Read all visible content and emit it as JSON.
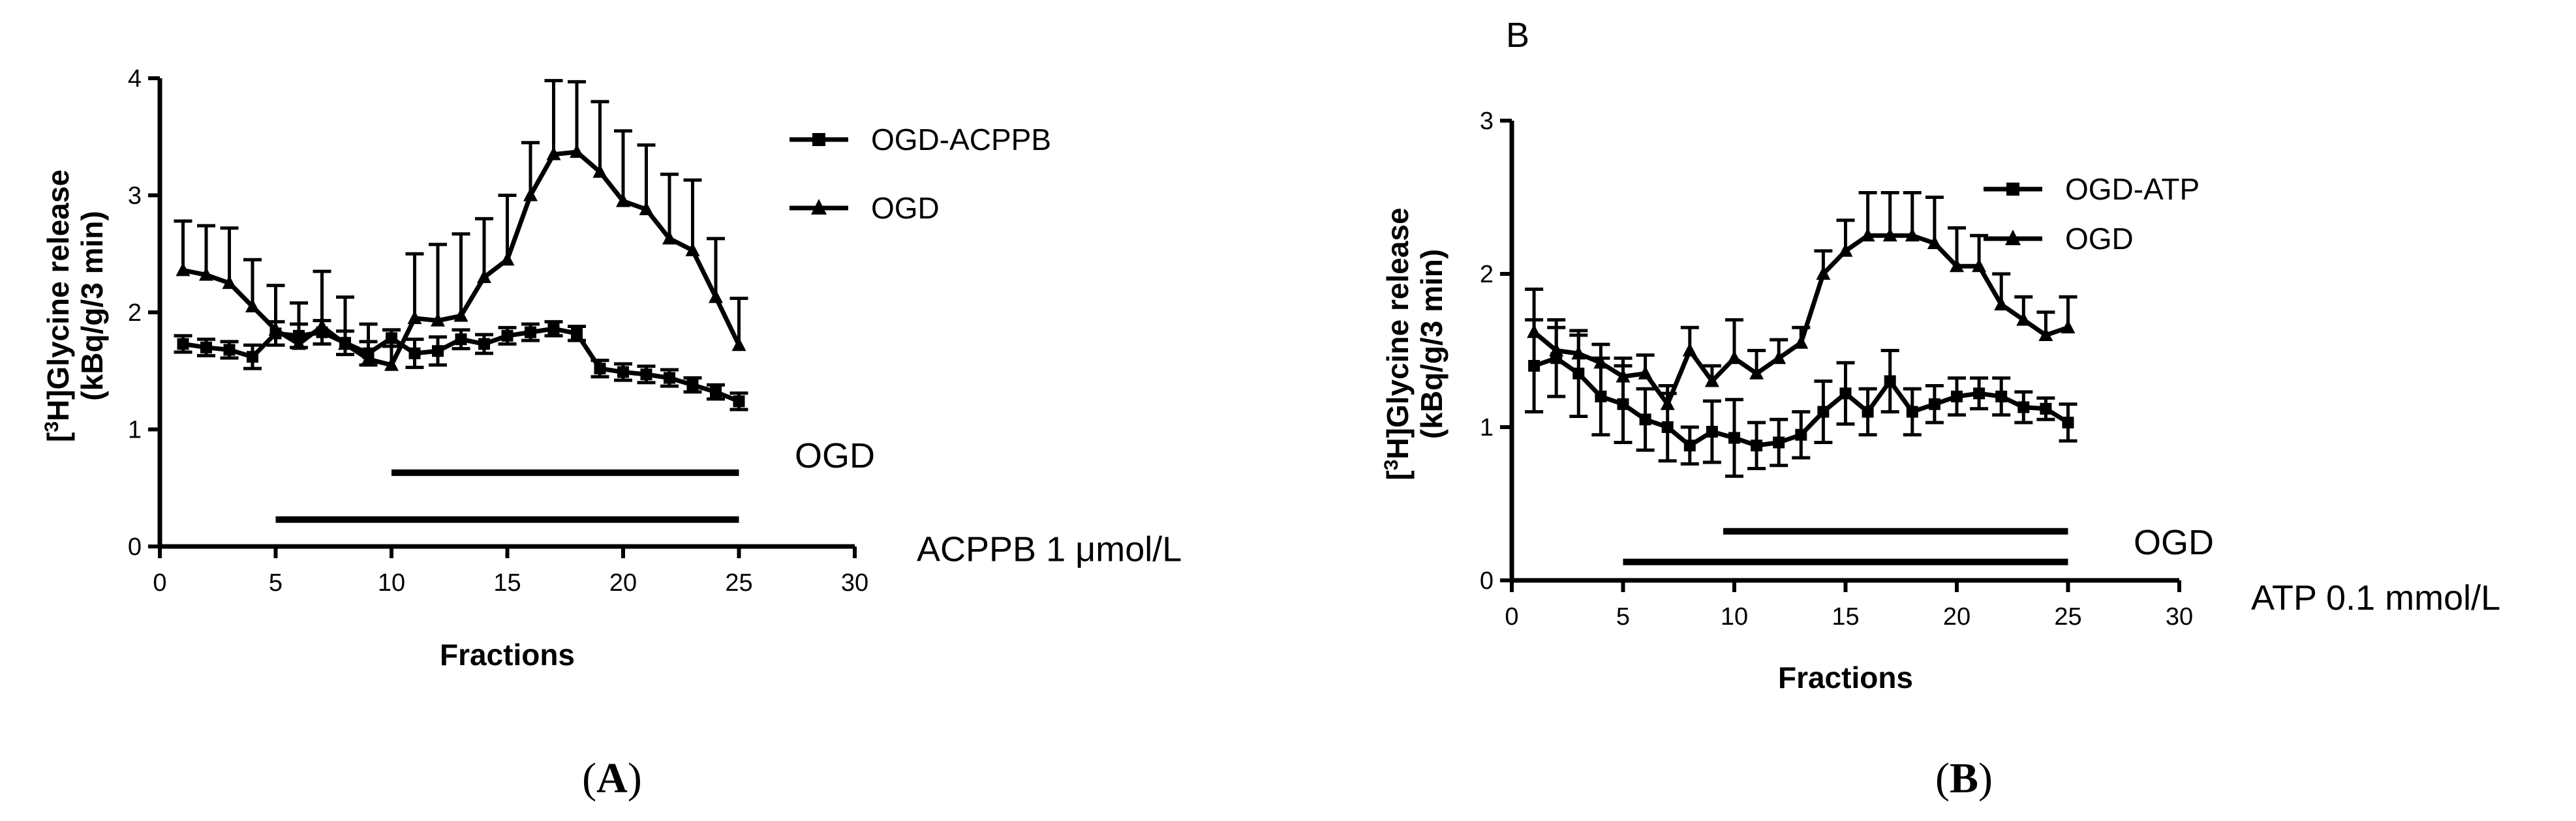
{
  "panels": {
    "A": {
      "caption": {
        "open": "(",
        "letter": "A",
        "close": ")"
      },
      "header": ""
    },
    "B": {
      "caption": {
        "open": "(",
        "letter": "B",
        "close": ")"
      },
      "header": "B"
    }
  },
  "chart_data": [
    {
      "type": "line",
      "panel": "A",
      "title": "",
      "xlabel": "Fractions",
      "ylabel_line1": "[3H]Glycine release",
      "ylabel_line2": "(kBq/g/3 min)",
      "xlim": [
        0,
        30
      ],
      "ylim": [
        0,
        4
      ],
      "xticks": [
        0,
        5,
        10,
        15,
        20,
        25,
        30
      ],
      "yticks": [
        0,
        1,
        2,
        3,
        4
      ],
      "x": [
        1,
        2,
        3,
        4,
        5,
        6,
        7,
        8,
        9,
        10,
        11,
        12,
        13,
        14,
        15,
        16,
        17,
        18,
        19,
        20,
        21,
        22,
        23,
        24,
        25
      ],
      "series": [
        {
          "name": "OGD-ACPPB",
          "marker": "square",
          "values": [
            1.73,
            1.7,
            1.68,
            1.62,
            1.82,
            1.8,
            1.83,
            1.74,
            1.65,
            1.78,
            1.65,
            1.67,
            1.77,
            1.73,
            1.8,
            1.83,
            1.86,
            1.82,
            1.52,
            1.49,
            1.47,
            1.44,
            1.38,
            1.32,
            1.24
          ],
          "errors": [
            0.07,
            0.07,
            0.07,
            0.1,
            0.1,
            0.1,
            0.1,
            0.1,
            0.1,
            0.07,
            0.12,
            0.12,
            0.08,
            0.08,
            0.07,
            0.07,
            0.06,
            0.06,
            0.07,
            0.07,
            0.07,
            0.07,
            0.06,
            0.06,
            0.07
          ]
        },
        {
          "name": "OGD",
          "marker": "triangle",
          "values": [
            2.36,
            2.32,
            2.25,
            2.05,
            1.85,
            1.73,
            1.88,
            1.73,
            1.6,
            1.55,
            1.95,
            1.93,
            1.97,
            2.3,
            2.45,
            3.0,
            3.35,
            3.37,
            3.2,
            2.95,
            2.88,
            2.63,
            2.53,
            2.13,
            1.72
          ],
          "errors": [
            0.42,
            0.42,
            0.47,
            0.4,
            0.38,
            0.35,
            0.47,
            0.4,
            0.3,
            0.3,
            0.55,
            0.65,
            0.7,
            0.5,
            0.55,
            0.45,
            0.63,
            0.6,
            0.6,
            0.6,
            0.55,
            0.55,
            0.6,
            0.5,
            0.4
          ]
        }
      ],
      "bars": [
        {
          "label": "OGD",
          "x_start": 10,
          "x_end": 25,
          "y": 0.63
        },
        {
          "label": "ACPPB 1 μmol/L",
          "x_start": 5,
          "x_end": 25,
          "y": 0.23
        }
      ],
      "legend_position": "top-right"
    },
    {
      "type": "line",
      "panel": "B",
      "title": "",
      "xlabel": "Fractions",
      "ylabel_line1": "[3H]Glycine release",
      "ylabel_line2": "(kBq/g/3 min)",
      "xlim": [
        0,
        30
      ],
      "ylim": [
        0,
        3
      ],
      "xticks": [
        0,
        5,
        10,
        15,
        20,
        25,
        30
      ],
      "yticks": [
        0,
        1,
        2,
        3
      ],
      "x": [
        1,
        2,
        3,
        4,
        5,
        6,
        7,
        8,
        9,
        10,
        11,
        12,
        13,
        14,
        15,
        16,
        17,
        18,
        19,
        20,
        21,
        22,
        23,
        24,
        25
      ],
      "series": [
        {
          "name": "OGD-ATP",
          "marker": "square",
          "values": [
            1.4,
            1.45,
            1.35,
            1.2,
            1.15,
            1.05,
            1.0,
            0.88,
            0.97,
            0.93,
            0.88,
            0.9,
            0.95,
            1.1,
            1.22,
            1.1,
            1.3,
            1.1,
            1.15,
            1.2,
            1.22,
            1.2,
            1.13,
            1.12,
            1.03
          ],
          "errors": [
            0.3,
            0.25,
            0.28,
            0.25,
            0.25,
            0.2,
            0.22,
            0.12,
            0.2,
            0.25,
            0.15,
            0.15,
            0.15,
            0.2,
            0.2,
            0.15,
            0.2,
            0.15,
            0.12,
            0.12,
            0.1,
            0.12,
            0.1,
            0.07,
            0.12
          ]
        },
        {
          "name": "OGD",
          "marker": "triangle",
          "values": [
            1.62,
            1.5,
            1.48,
            1.42,
            1.33,
            1.35,
            1.15,
            1.5,
            1.3,
            1.45,
            1.35,
            1.45,
            1.55,
            2.0,
            2.15,
            2.25,
            2.25,
            2.25,
            2.2,
            2.05,
            2.05,
            1.8,
            1.7,
            1.6,
            1.65
          ],
          "errors": [
            0.28,
            0.15,
            0.12,
            0.12,
            0.12,
            0.12,
            0.12,
            0.15,
            0.1,
            0.25,
            0.15,
            0.12,
            0.1,
            0.15,
            0.2,
            0.28,
            0.28,
            0.28,
            0.3,
            0.25,
            0.2,
            0.2,
            0.15,
            0.15,
            0.2
          ]
        }
      ],
      "bars": [
        {
          "label": "OGD",
          "x_start": 9.5,
          "x_end": 25,
          "y": 0.32
        },
        {
          "label": "ATP 0.1 mmol/L",
          "x_start": 5,
          "x_end": 25,
          "y": 0.12
        }
      ],
      "legend_position": "top-right"
    }
  ]
}
